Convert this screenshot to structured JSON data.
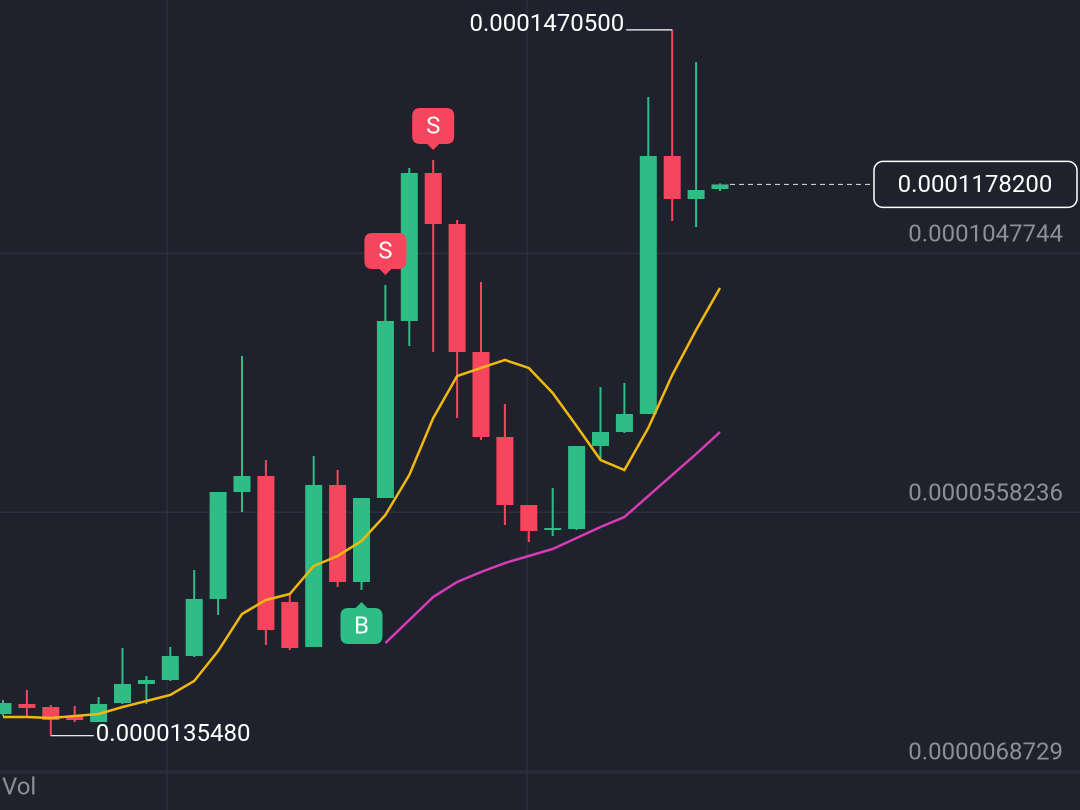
{
  "chart_data": {
    "type": "candlestick",
    "ylim": [
      6.8729e-06,
      0.0001527
    ],
    "yticks": [
      0.0001047744,
      5.58236e-05,
      6.8729e-06
    ],
    "grid": true,
    "up_color": "#2ebd85",
    "down_color": "#f6465d",
    "candles": {
      "open": [
        1.765e-05,
        1.955e-05,
        1.898e-05,
        1.728e-05,
        1.614e-05,
        1.973e-05,
        2.333e-05,
        2.408e-05,
        2.862e-05,
        3.941e-05,
        5.964e-05,
        6.267e-05,
        3.884e-05,
        3.033e-05,
        6.097e-05,
        4.262e-05,
        5.851e-05,
        9.199e-05,
        0.00011998,
        0.00011033,
        8.612e-05,
        7.005e-05,
        5.718e-05,
        5.246e-05,
        5.264e-05,
        6.834e-05,
        7.099e-05,
        7.44e-05,
        0.00012319,
        0.00011506,
        0.00011695
      ],
      "high": [
        2.03e-05,
        2.219e-05,
        1.936e-05,
        1.917e-05,
        2.087e-05,
        3.014e-05,
        2.484e-05,
        3.033e-05,
        4.489e-05,
        5.964e-05,
        8.537e-05,
        6.57e-05,
        4.016e-05,
        6.645e-05,
        6.38e-05,
        5.851e-05,
        9.88e-05,
        0.00012092,
        0.00012244,
        0.00011109,
        9.936e-05,
        7.629e-05,
        5.718e-05,
        6.04e-05,
        6.834e-05,
        7.95e-05,
        8.026e-05,
        0.00013435,
        0.00014705,
        0.00014097,
        0.000118
      ],
      "low": [
        1.728e-05,
        1.728e-05,
        1.3548e-05,
        1.614e-05,
        1.614e-05,
        1.955e-05,
        1.955e-05,
        2.39e-05,
        2.843e-05,
        3.638e-05,
        5.586e-05,
        3.071e-05,
        2.976e-05,
        3.033e-05,
        4.167e-05,
        4.111e-05,
        5.851e-05,
        8.726e-05,
        8.612e-05,
        7.364e-05,
        6.948e-05,
        5.34e-05,
        5.019e-05,
        5.132e-05,
        5.246e-05,
        6.551e-05,
        7.08e-05,
        7.44e-05,
        0.0001109,
        0.00010977,
        0.00011657
      ],
      "close": [
        1.973e-05,
        1.879e-05,
        1.652e-05,
        1.652e-05,
        1.955e-05,
        2.333e-05,
        2.408e-05,
        2.862e-05,
        3.941e-05,
        5.964e-05,
        6.267e-05,
        3.354e-05,
        3.014e-05,
        6.097e-05,
        4.262e-05,
        5.851e-05,
        9.199e-05,
        0.00011998,
        0.00011033,
        8.612e-05,
        7.005e-05,
        5.718e-05,
        5.227e-05,
        5.283e-05,
        6.834e-05,
        7.099e-05,
        7.44e-05,
        0.00012319,
        0.00011506,
        0.00011676,
        0.00011782
      ]
    },
    "lines": [
      {
        "color": "#f0b90b",
        "values": [
          1.709e-05,
          1.709e-05,
          1.69e-05,
          1.728e-05,
          1.765e-05,
          1.898e-05,
          2.011e-05,
          2.125e-05,
          2.39e-05,
          2.957e-05,
          3.657e-05,
          3.922e-05,
          4.035e-05,
          4.565e-05,
          4.754e-05,
          5.038e-05,
          5.53e-05,
          6.286e-05,
          7.364e-05,
          8.158e-05,
          8.31e-05,
          8.461e-05,
          8.31e-05,
          7.837e-05,
          7.213e-05,
          6.57e-05,
          6.38e-05,
          7.175e-05,
          8.177e-05,
          9.028e-05,
          9.823e-05
        ]
      },
      {
        "color": "#d63cb5",
        "values": [
          null,
          null,
          null,
          null,
          null,
          null,
          null,
          null,
          null,
          null,
          null,
          null,
          null,
          null,
          null,
          null,
          3.108e-05,
          3.543e-05,
          3.978e-05,
          4.262e-05,
          4.451e-05,
          4.621e-05,
          4.754e-05,
          4.886e-05,
          5.094e-05,
          5.302e-05,
          5.491e-05,
          5.889e-05,
          6.286e-05,
          6.683e-05,
          7.099e-05
        ]
      }
    ],
    "high_label": {
      "index": 28,
      "value": 0.00014705,
      "label": "0.0001470500"
    },
    "low_label": {
      "index": 2,
      "value": 1.3548e-05,
      "label": "0.0000135480"
    },
    "last_price": {
      "index": 30,
      "value": 0.00011782,
      "label": "0.0001178200"
    },
    "markers": [
      {
        "index": 15,
        "label": "B",
        "side": "below",
        "color": "#2ebd85"
      },
      {
        "index": 16,
        "label": "S",
        "side": "above",
        "color": "#f6465d"
      },
      {
        "index": 18,
        "label": "S",
        "side": "above",
        "color": "#f6465d"
      }
    ],
    "vol_label": "Vol"
  }
}
